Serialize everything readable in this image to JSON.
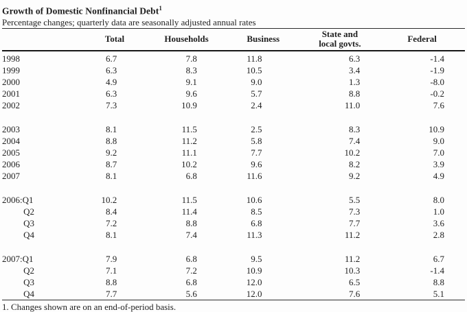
{
  "page": {
    "title": "Growth of Domestic Nonfinancial Debt",
    "title_footnote_marker": "1",
    "subtitle": "Percentage changes; quarterly data are seasonally adjusted annual rates",
    "footnote": "1. Changes shown are on an end-of-period basis."
  },
  "colors": {
    "text": "#1f1f1f",
    "rule": "#2a2a2a",
    "background": "#fdfdfd"
  },
  "table": {
    "period_column_header": "",
    "columns": [
      "Total",
      "Households",
      "Business",
      "State and\nlocal govts.",
      "Federal"
    ],
    "blocks": [
      {
        "rows": [
          {
            "period": "1998",
            "values": [
              "6.7",
              "7.8",
              "11.8",
              "6.3",
              "-1.4"
            ]
          },
          {
            "period": "1999",
            "values": [
              "6.3",
              "8.3",
              "10.5",
              "3.4",
              "-1.9"
            ]
          },
          {
            "period": "2000",
            "values": [
              "4.9",
              "9.1",
              "9.0",
              "1.3",
              "-8.0"
            ]
          },
          {
            "period": "2001",
            "values": [
              "6.3",
              "9.6",
              "5.7",
              "8.8",
              "-0.2"
            ]
          },
          {
            "period": "2002",
            "values": [
              "7.3",
              "10.9",
              "2.4",
              "11.0",
              "7.6"
            ]
          }
        ]
      },
      {
        "rows": [
          {
            "period": "2003",
            "values": [
              "8.1",
              "11.5",
              "2.5",
              "8.3",
              "10.9"
            ]
          },
          {
            "period": "2004",
            "values": [
              "8.8",
              "11.2",
              "5.8",
              "7.4",
              "9.0"
            ]
          },
          {
            "period": "2005",
            "values": [
              "9.2",
              "11.1",
              "7.7",
              "10.2",
              "7.0"
            ]
          },
          {
            "period": "2006",
            "values": [
              "8.7",
              "10.2",
              "9.6",
              "8.2",
              "3.9"
            ]
          },
          {
            "period": "2007",
            "values": [
              "8.1",
              "6.8",
              "11.6",
              "9.2",
              "4.9"
            ]
          }
        ]
      },
      {
        "rows": [
          {
            "period": "2006:Q1",
            "values": [
              "10.2",
              "11.5",
              "10.6",
              "5.5",
              "8.0"
            ]
          },
          {
            "period": "Q2",
            "values": [
              "8.4",
              "11.4",
              "8.5",
              "7.3",
              "1.0"
            ]
          },
          {
            "period": "Q3",
            "values": [
              "7.2",
              "8.8",
              "6.8",
              "7.7",
              "3.6"
            ]
          },
          {
            "period": "Q4",
            "values": [
              "8.1",
              "7.4",
              "11.3",
              "11.2",
              "2.8"
            ]
          }
        ]
      },
      {
        "rows": [
          {
            "period": "2007:Q1",
            "values": [
              "7.9",
              "6.8",
              "9.5",
              "11.2",
              "6.7"
            ]
          },
          {
            "period": "Q2",
            "values": [
              "7.1",
              "7.2",
              "10.9",
              "10.3",
              "-1.4"
            ]
          },
          {
            "period": "Q3",
            "values": [
              "8.8",
              "6.8",
              "12.0",
              "6.5",
              "8.8"
            ]
          },
          {
            "period": "Q4",
            "values": [
              "7.7",
              "5.6",
              "12.0",
              "7.6",
              "5.1"
            ]
          }
        ]
      }
    ]
  }
}
